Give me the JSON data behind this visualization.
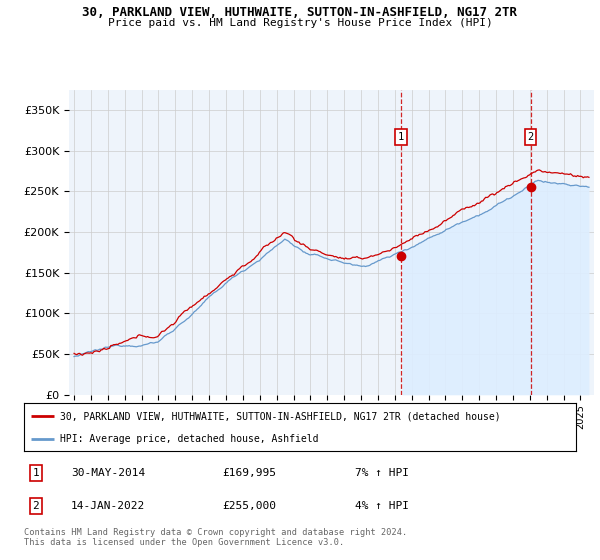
{
  "title": "30, PARKLAND VIEW, HUTHWAITE, SUTTON-IN-ASHFIELD, NG17 2TR",
  "subtitle": "Price paid vs. HM Land Registry's House Price Index (HPI)",
  "ylim": [
    0,
    375000
  ],
  "yticks": [
    0,
    50000,
    100000,
    150000,
    200000,
    250000,
    300000,
    350000
  ],
  "ytick_labels": [
    "£0",
    "£50K",
    "£100K",
    "£150K",
    "£200K",
    "£250K",
    "£300K",
    "£350K"
  ],
  "hpi_color": "#6699cc",
  "price_color": "#cc0000",
  "hpi_fill_color": "#ddeeff",
  "sale1_date": 2014.38,
  "sale1_price": 169995,
  "sale1_label": "1",
  "sale2_date": 2022.04,
  "sale2_price": 255000,
  "sale2_label": "2",
  "grid_color": "#cccccc",
  "bg_color": "#eef4fb",
  "legend_line1": "30, PARKLAND VIEW, HUTHWAITE, SUTTON-IN-ASHFIELD, NG17 2TR (detached house)",
  "legend_line2": "HPI: Average price, detached house, Ashfield",
  "table_row1_num": "1",
  "table_row1_date": "30-MAY-2014",
  "table_row1_price": "£169,995",
  "table_row1_hpi": "7% ↑ HPI",
  "table_row2_num": "2",
  "table_row2_date": "14-JAN-2022",
  "table_row2_price": "£255,000",
  "table_row2_hpi": "4% ↑ HPI",
  "footer": "Contains HM Land Registry data © Crown copyright and database right 2024.\nThis data is licensed under the Open Government Licence v3.0.",
  "xmin": 1994.7,
  "xmax": 2025.8
}
